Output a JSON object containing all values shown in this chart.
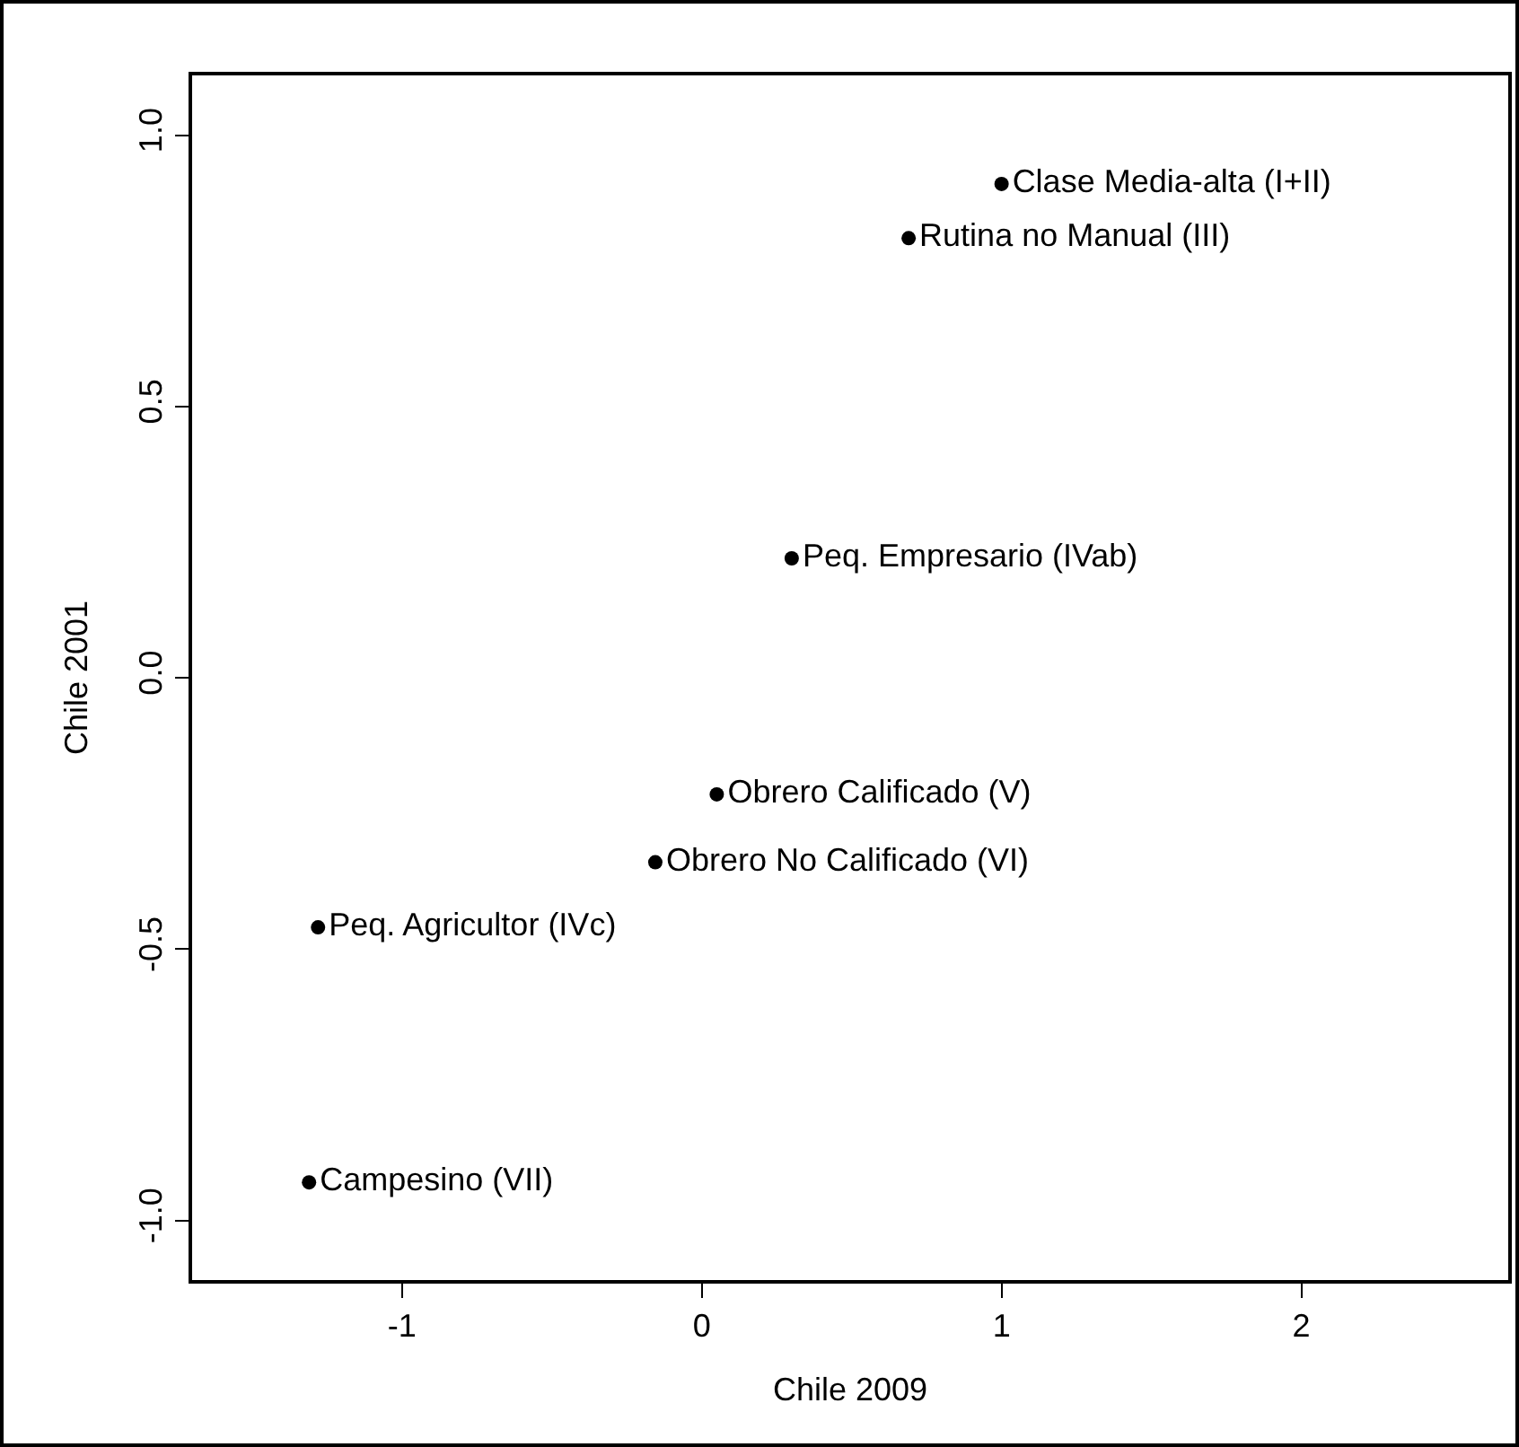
{
  "chart_data": {
    "type": "scatter",
    "xlabel": "Chile 2009",
    "ylabel": "Chile 2001",
    "xlim": [
      -1.7,
      2.69
    ],
    "xticks": [
      -1,
      0,
      1,
      2
    ],
    "ylim": [
      -1.11,
      1.11
    ],
    "yticks": [
      {
        "value": -1,
        "label": "-1.0"
      },
      {
        "value": -0.5,
        "label": "-0.5"
      },
      {
        "value": 0,
        "label": "0.0"
      },
      {
        "value": 0.5,
        "label": "0.5"
      },
      {
        "value": 1,
        "label": "1.0"
      }
    ],
    "grid": false,
    "marker": "circle",
    "series": [
      {
        "color": "#000000",
        "x": [
          1.0,
          0.69,
          0.3,
          0.05,
          -0.155,
          -1.28,
          -1.31
        ],
        "values": [
          0.91,
          0.81,
          0.22,
          -0.215,
          -0.34,
          -0.46,
          -0.93
        ],
        "value_labels": [
          "Clase Media-alta (I+II)",
          "Rutina no Manual (III)",
          "Peq. Empresario (IVab)",
          "Obrero Calificado (V)",
          "Obrero No Calificado (VI)",
          "Peq. Agricultor (IVc)",
          "Campesino (VII)"
        ]
      }
    ]
  }
}
